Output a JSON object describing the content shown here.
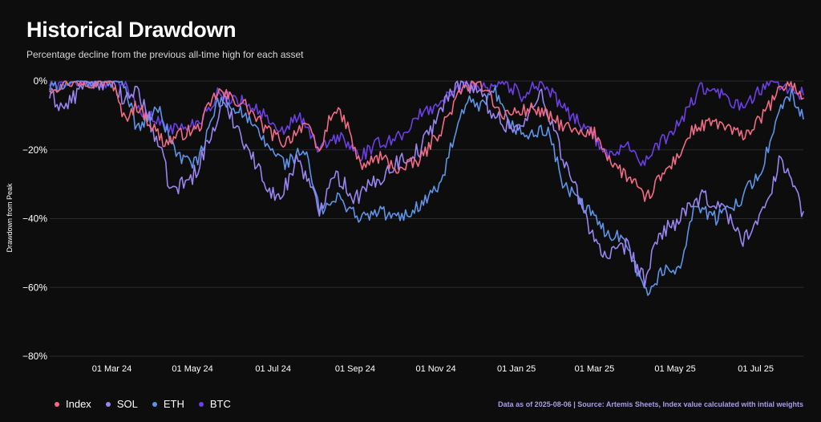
{
  "header": {
    "title": "Historical Drawdown",
    "subtitle": "Percentage decline from the previous all-time high for each asset"
  },
  "footer": {
    "source": "Data as of 2025-08-06 | Source: Artemis Sheets, Index value calculated with intial weights"
  },
  "chart_data": {
    "type": "line",
    "ylabel": "Drawdown from Peak",
    "xlabel": "",
    "ylim": [
      -80,
      0
    ],
    "yticks": [
      0,
      -20,
      -40,
      -60,
      -80
    ],
    "ytick_labels": [
      "0%",
      "−20%",
      "−40%",
      "−60%",
      "−80%"
    ],
    "xlim": [
      "2024-01-14",
      "2025-08-06"
    ],
    "xticks": [
      "2024-03-01",
      "2024-05-01",
      "2024-07-01",
      "2024-09-01",
      "2024-11-01",
      "2025-01-01",
      "2025-03-01",
      "2025-05-01",
      "2025-07-01"
    ],
    "xtick_labels": [
      "01 Mar 24",
      "01 May 24",
      "01 Jul 24",
      "01 Sep 24",
      "01 Nov 24",
      "01 Jan 25",
      "01 Mar 25",
      "01 May 25",
      "01 Jul 25"
    ],
    "grid": "horizontal",
    "legend_position": "bottom-left",
    "series": [
      {
        "name": "Index",
        "color": "#f26b85",
        "points": [
          [
            "2024-01-14",
            -2
          ],
          [
            "2024-02-01",
            0
          ],
          [
            "2024-03-01",
            0
          ],
          [
            "2024-03-10",
            -11
          ],
          [
            "2024-03-20",
            -7
          ],
          [
            "2024-04-10",
            -18
          ],
          [
            "2024-04-25",
            -15
          ],
          [
            "2024-05-05",
            -14
          ],
          [
            "2024-05-20",
            -3
          ],
          [
            "2024-06-10",
            -7
          ],
          [
            "2024-06-25",
            -14
          ],
          [
            "2024-07-10",
            -18
          ],
          [
            "2024-07-25",
            -12
          ],
          [
            "2024-08-05",
            -21
          ],
          [
            "2024-08-15",
            -8
          ],
          [
            "2024-08-25",
            -12
          ],
          [
            "2024-09-05",
            -25
          ],
          [
            "2024-09-20",
            -22
          ],
          [
            "2024-10-05",
            -26
          ],
          [
            "2024-10-20",
            -23
          ],
          [
            "2024-11-05",
            -14
          ],
          [
            "2024-11-20",
            -3
          ],
          [
            "2024-12-01",
            0
          ],
          [
            "2024-12-10",
            -2
          ],
          [
            "2024-12-20",
            -10
          ],
          [
            "2025-01-01",
            -9
          ],
          [
            "2025-01-15",
            -8
          ],
          [
            "2025-02-01",
            -12
          ],
          [
            "2025-02-20",
            -16
          ],
          [
            "2025-03-01",
            -15
          ],
          [
            "2025-03-15",
            -24
          ],
          [
            "2025-04-01",
            -30
          ],
          [
            "2025-04-08",
            -35
          ],
          [
            "2025-04-20",
            -28
          ],
          [
            "2025-05-01",
            -23
          ],
          [
            "2025-05-15",
            -14
          ],
          [
            "2025-06-01",
            -12
          ],
          [
            "2025-06-20",
            -16
          ],
          [
            "2025-07-01",
            -13
          ],
          [
            "2025-07-15",
            -5
          ],
          [
            "2025-07-25",
            0
          ],
          [
            "2025-08-06",
            -5
          ]
        ]
      },
      {
        "name": "SOL",
        "color": "#9a84f0",
        "points": [
          [
            "2024-01-14",
            -4
          ],
          [
            "2024-01-25",
            -8
          ],
          [
            "2024-02-05",
            -3
          ],
          [
            "2024-02-15",
            0
          ],
          [
            "2024-03-01",
            0
          ],
          [
            "2024-03-10",
            -6
          ],
          [
            "2024-03-20",
            -2
          ],
          [
            "2024-04-05",
            -18
          ],
          [
            "2024-04-15",
            -32
          ],
          [
            "2024-05-01",
            -28
          ],
          [
            "2024-05-15",
            -16
          ],
          [
            "2024-05-25",
            -6
          ],
          [
            "2024-06-05",
            -14
          ],
          [
            "2024-06-20",
            -26
          ],
          [
            "2024-07-05",
            -35
          ],
          [
            "2024-07-20",
            -22
          ],
          [
            "2024-08-05",
            -38
          ],
          [
            "2024-08-15",
            -26
          ],
          [
            "2024-09-01",
            -34
          ],
          [
            "2024-09-15",
            -30
          ],
          [
            "2024-10-01",
            -24
          ],
          [
            "2024-10-20",
            -20
          ],
          [
            "2024-11-05",
            -8
          ],
          [
            "2024-11-20",
            0
          ],
          [
            "2024-12-05",
            -4
          ],
          [
            "2024-12-20",
            -12
          ],
          [
            "2025-01-05",
            -14
          ],
          [
            "2025-01-20",
            -3
          ],
          [
            "2025-02-05",
            -22
          ],
          [
            "2025-02-25",
            -42
          ],
          [
            "2025-03-10",
            -52
          ],
          [
            "2025-03-25",
            -48
          ],
          [
            "2025-04-08",
            -58
          ],
          [
            "2025-04-20",
            -44
          ],
          [
            "2025-05-05",
            -40
          ],
          [
            "2025-05-20",
            -34
          ],
          [
            "2025-06-05",
            -36
          ],
          [
            "2025-06-20",
            -46
          ],
          [
            "2025-07-05",
            -40
          ],
          [
            "2025-07-20",
            -22
          ],
          [
            "2025-08-06",
            -38
          ]
        ]
      },
      {
        "name": "ETH",
        "color": "#5e94e8",
        "points": [
          [
            "2024-01-14",
            -2
          ],
          [
            "2024-02-01",
            0
          ],
          [
            "2024-03-10",
            0
          ],
          [
            "2024-03-20",
            -14
          ],
          [
            "2024-04-05",
            -8
          ],
          [
            "2024-04-20",
            -22
          ],
          [
            "2024-05-05",
            -24
          ],
          [
            "2024-05-20",
            -6
          ],
          [
            "2024-06-05",
            -8
          ],
          [
            "2024-06-25",
            -18
          ],
          [
            "2024-07-10",
            -24
          ],
          [
            "2024-07-25",
            -20
          ],
          [
            "2024-08-05",
            -38
          ],
          [
            "2024-08-20",
            -34
          ],
          [
            "2024-09-05",
            -40
          ],
          [
            "2024-09-20",
            -38
          ],
          [
            "2024-10-05",
            -40
          ],
          [
            "2024-10-20",
            -36
          ],
          [
            "2024-11-05",
            -30
          ],
          [
            "2024-11-15",
            -16
          ],
          [
            "2024-11-25",
            -6
          ],
          [
            "2024-12-05",
            -8
          ],
          [
            "2024-12-16",
            -3
          ],
          [
            "2024-12-25",
            -12
          ],
          [
            "2025-01-10",
            -16
          ],
          [
            "2025-01-25",
            -14
          ],
          [
            "2025-02-05",
            -30
          ],
          [
            "2025-02-25",
            -38
          ],
          [
            "2025-03-10",
            -44
          ],
          [
            "2025-03-25",
            -46
          ],
          [
            "2025-04-09",
            -62
          ],
          [
            "2025-04-20",
            -56
          ],
          [
            "2025-05-05",
            -54
          ],
          [
            "2025-05-15",
            -36
          ],
          [
            "2025-06-01",
            -40
          ],
          [
            "2025-06-20",
            -34
          ],
          [
            "2025-07-05",
            -26
          ],
          [
            "2025-07-20",
            -8
          ],
          [
            "2025-07-28",
            -4
          ],
          [
            "2025-08-06",
            -11
          ]
        ]
      },
      {
        "name": "BTC",
        "color": "#6c3fe6",
        "points": [
          [
            "2024-01-14",
            -1
          ],
          [
            "2024-02-01",
            0
          ],
          [
            "2024-03-10",
            0
          ],
          [
            "2024-03-20",
            -8
          ],
          [
            "2024-04-05",
            -12
          ],
          [
            "2024-04-20",
            -14
          ],
          [
            "2024-05-05",
            -12
          ],
          [
            "2024-05-20",
            -4
          ],
          [
            "2024-06-10",
            -6
          ],
          [
            "2024-06-25",
            -10
          ],
          [
            "2024-07-05",
            -16
          ],
          [
            "2024-07-20",
            -10
          ],
          [
            "2024-08-05",
            -20
          ],
          [
            "2024-08-20",
            -16
          ],
          [
            "2024-09-05",
            -22
          ],
          [
            "2024-09-20",
            -18
          ],
          [
            "2024-10-05",
            -16
          ],
          [
            "2024-10-20",
            -10
          ],
          [
            "2024-11-05",
            -6
          ],
          [
            "2024-11-15",
            -3
          ],
          [
            "2024-11-25",
            0
          ],
          [
            "2024-12-10",
            -2
          ],
          [
            "2024-12-20",
            0
          ],
          [
            "2025-01-05",
            -4
          ],
          [
            "2025-01-20",
            0
          ],
          [
            "2025-02-05",
            -8
          ],
          [
            "2025-02-25",
            -14
          ],
          [
            "2025-03-10",
            -22
          ],
          [
            "2025-03-25",
            -18
          ],
          [
            "2025-04-08",
            -24
          ],
          [
            "2025-04-20",
            -18
          ],
          [
            "2025-05-05",
            -12
          ],
          [
            "2025-05-20",
            -2
          ],
          [
            "2025-06-05",
            -4
          ],
          [
            "2025-06-20",
            -8
          ],
          [
            "2025-07-01",
            -4
          ],
          [
            "2025-07-15",
            0
          ],
          [
            "2025-07-25",
            -2
          ],
          [
            "2025-08-06",
            -4
          ]
        ]
      }
    ]
  }
}
